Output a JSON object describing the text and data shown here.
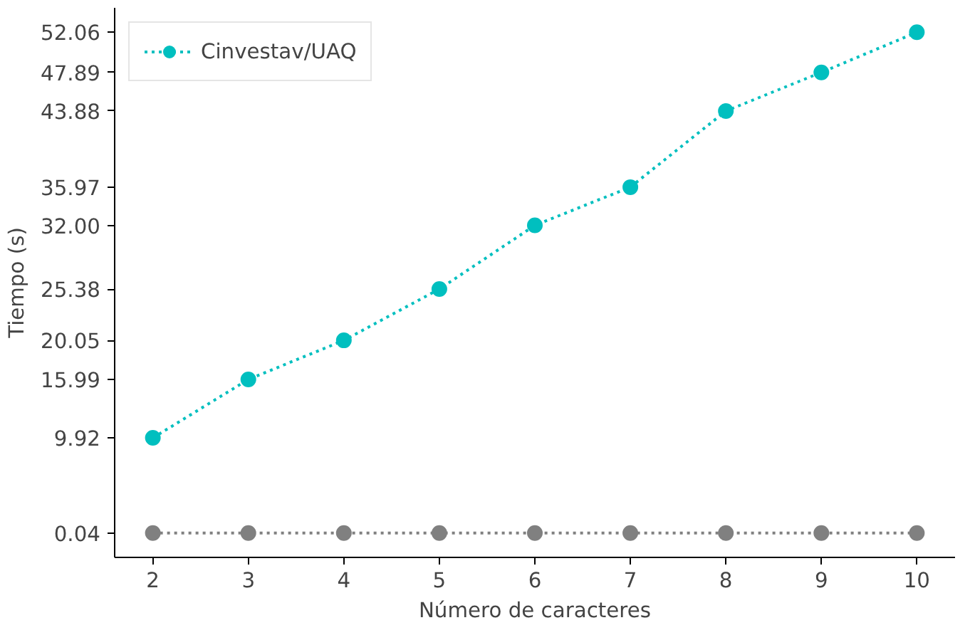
{
  "chart_data": {
    "type": "line",
    "xlabel": "Número de caracteres",
    "ylabel": "Tiempo (s)",
    "x": [
      2,
      3,
      4,
      5,
      6,
      7,
      8,
      9,
      10
    ],
    "series": [
      {
        "name": "Cinvestav/UAQ",
        "color": "#00bfbf",
        "values": [
          9.92,
          15.99,
          20.05,
          25.38,
          32.0,
          35.97,
          43.88,
          47.89,
          52.06
        ]
      },
      {
        "color": "#808080",
        "values": [
          0.04,
          0.04,
          0.04,
          0.04,
          0.04,
          0.04,
          0.04,
          0.04,
          0.04
        ]
      }
    ],
    "xlim": [
      1.6,
      10.4
    ],
    "ylim": [
      -2.5,
      54.6
    ],
    "xticks": [
      2,
      3,
      4,
      5,
      6,
      7,
      8,
      9,
      10
    ],
    "yticks": [
      {
        "value": 0.04,
        "label": "0.04"
      },
      {
        "value": 9.92,
        "label": "9.92"
      },
      {
        "value": 15.99,
        "label": "15.99"
      },
      {
        "value": 20.05,
        "label": "20.05"
      },
      {
        "value": 25.38,
        "label": "25.38"
      },
      {
        "value": 32.0,
        "label": "32.00"
      },
      {
        "value": 35.97,
        "label": "35.97"
      },
      {
        "value": 43.88,
        "label": "43.88"
      },
      {
        "value": 47.89,
        "label": "47.89"
      },
      {
        "value": 52.06,
        "label": "52.06"
      }
    ],
    "grid": false,
    "legend": "top left",
    "marker": "circle",
    "line_style": "dotted"
  }
}
